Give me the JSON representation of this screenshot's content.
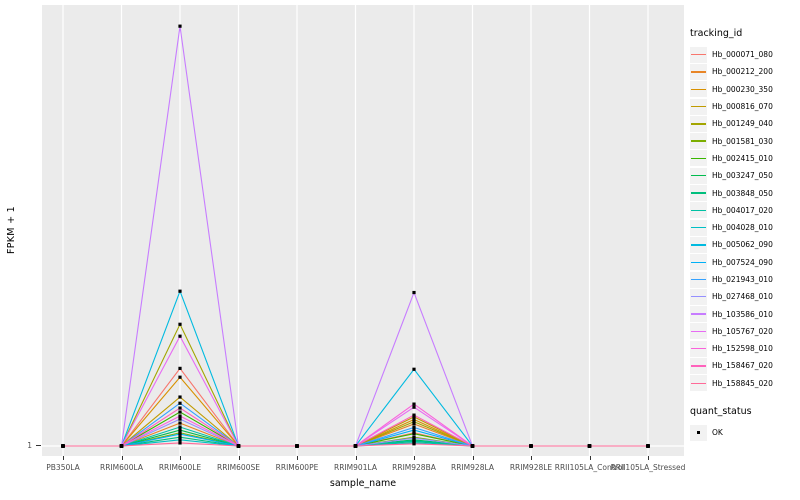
{
  "chart_data": {
    "type": "line",
    "title": "",
    "xlabel": "sample_name",
    "ylabel": "FPKM + 1",
    "y_ticks": [
      "1"
    ],
    "y_axis_note": "only the value 1 is labeled on the y axis; series values are estimated fractions of panel height above the y=1 baseline",
    "x_categories": [
      "PB350LA",
      "RRIM600LA",
      "RRIM600LE",
      "RRIM600SE",
      "RRIM600PE",
      "RRIM901LA",
      "RRIM928BA",
      "RRIM928LA",
      "RRIM928LE",
      "RRII105LA_Control",
      "RRII105LA_Stressed"
    ],
    "legend": {
      "title": "tracking_id",
      "position": "right"
    },
    "point_legend": {
      "title": "quant_status",
      "items": [
        {
          "label": "OK",
          "marker": "black-square"
        }
      ]
    },
    "grid": "white major gridlines on gray panel",
    "series": [
      {
        "name": "Hb_000071_080",
        "color": "#F8766D",
        "values": [
          0,
          0,
          0.176,
          0,
          0,
          0,
          0.03,
          0,
          0,
          0,
          0
        ]
      },
      {
        "name": "Hb_000212_200",
        "color": "#E88526",
        "values": [
          0,
          0,
          0.052,
          0,
          0,
          0,
          0.05,
          0,
          0,
          0,
          0
        ]
      },
      {
        "name": "Hb_000230_350",
        "color": "#D89000",
        "values": [
          0,
          0,
          0.156,
          0,
          0,
          0,
          0.06,
          0,
          0,
          0,
          0
        ]
      },
      {
        "name": "Hb_000816_070",
        "color": "#C09B00",
        "values": [
          0,
          0,
          0.111,
          0,
          0,
          0,
          0.066,
          0,
          0,
          0,
          0
        ]
      },
      {
        "name": "Hb_001249_040",
        "color": "#A3A500",
        "values": [
          0,
          0,
          0.276,
          0,
          0,
          0,
          0.055,
          0,
          0,
          0,
          0
        ]
      },
      {
        "name": "Hb_001581_030",
        "color": "#7CAE00",
        "values": [
          0,
          0,
          0.03,
          0,
          0,
          0,
          0.02,
          0,
          0,
          0,
          0
        ]
      },
      {
        "name": "Hb_002415_010",
        "color": "#39B600",
        "values": [
          0,
          0,
          0.077,
          0,
          0,
          0,
          0.028,
          0,
          0,
          0,
          0
        ]
      },
      {
        "name": "Hb_003247_050",
        "color": "#00BB4E",
        "values": [
          0,
          0,
          0.036,
          0,
          0,
          0,
          0.014,
          0,
          0,
          0,
          0
        ]
      },
      {
        "name": "Hb_003848_050",
        "color": "#00BF7D",
        "values": [
          0,
          0,
          0.02,
          0,
          0,
          0,
          0.01,
          0,
          0,
          0,
          0
        ]
      },
      {
        "name": "Hb_004017_020",
        "color": "#00C1A3",
        "values": [
          0,
          0,
          0.043,
          0,
          0,
          0,
          0.012,
          0,
          0,
          0,
          0
        ]
      },
      {
        "name": "Hb_004028_010",
        "color": "#00BFC4",
        "values": [
          0,
          0,
          0.014,
          0,
          0,
          0,
          0.007,
          0,
          0,
          0,
          0
        ]
      },
      {
        "name": "Hb_005062_090",
        "color": "#00BAE0",
        "values": [
          0,
          0,
          0.351,
          0,
          0,
          0,
          0.174,
          0,
          0,
          0,
          0
        ]
      },
      {
        "name": "Hb_007524_090",
        "color": "#00B0F6",
        "values": [
          0,
          0,
          0.027,
          0,
          0,
          0,
          0.036,
          0,
          0,
          0,
          0
        ]
      },
      {
        "name": "Hb_021943_010",
        "color": "#35A2FF",
        "values": [
          0,
          0,
          0.097,
          0,
          0,
          0,
          0.042,
          0,
          0,
          0,
          0
        ]
      },
      {
        "name": "Hb_027468_010",
        "color": "#9590FF",
        "values": [
          0,
          0,
          0.061,
          0,
          0,
          0,
          0.018,
          0,
          0,
          0,
          0
        ]
      },
      {
        "name": "Hb_103586_010",
        "color": "#C77CFF",
        "values": [
          0,
          0,
          0.952,
          0,
          0,
          0,
          0.348,
          0,
          0,
          0,
          0
        ]
      },
      {
        "name": "Hb_105767_020",
        "color": "#E76BF3",
        "values": [
          0,
          0,
          0.249,
          0,
          0,
          0,
          0.088,
          0,
          0,
          0,
          0
        ]
      },
      {
        "name": "Hb_152598_010",
        "color": "#FA62DB",
        "values": [
          0,
          0,
          0.068,
          0,
          0,
          0,
          0.095,
          0,
          0,
          0,
          0
        ]
      },
      {
        "name": "Hb_158467_020",
        "color": "#FF62BC",
        "values": [
          0,
          0,
          0.086,
          0,
          0,
          0,
          0.07,
          0,
          0,
          0,
          0
        ]
      },
      {
        "name": "Hb_158845_020",
        "color": "#FF6A98",
        "values": [
          0,
          0,
          0.007,
          0,
          0,
          0,
          0.005,
          0,
          0,
          0,
          0
        ]
      }
    ],
    "colors": {
      "panel_background": "#EBEBEB",
      "gridline": "#FFFFFF",
      "tick": "#333333",
      "tick_label": "#4D4D4D",
      "marker": "#000000",
      "legend_key_background": "#F2F2F2"
    }
  }
}
